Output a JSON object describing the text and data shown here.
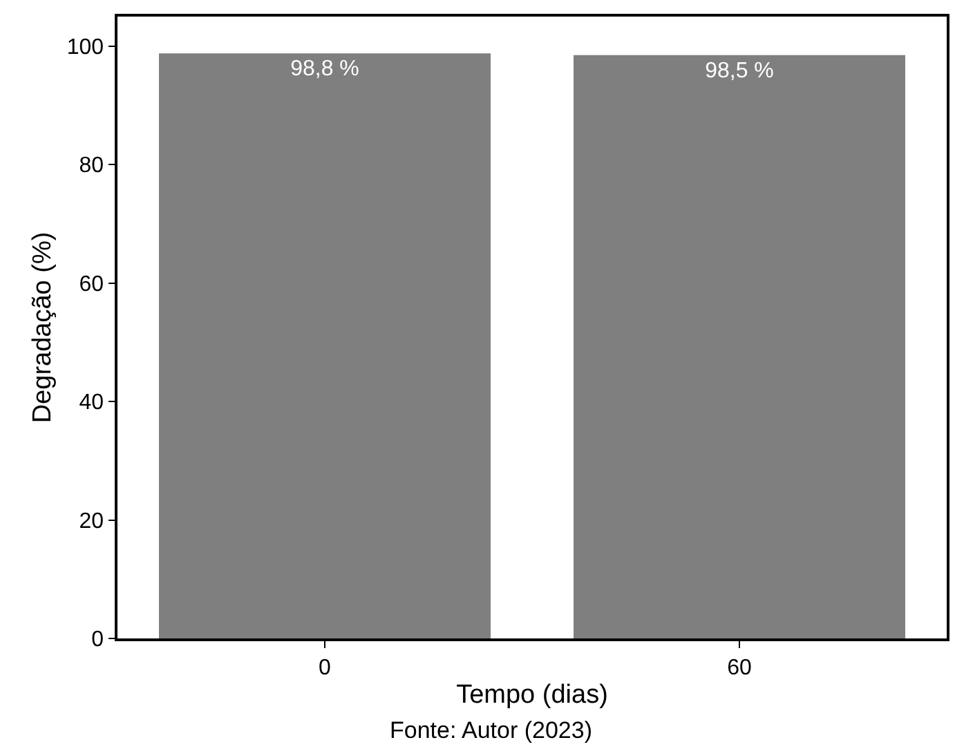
{
  "chart_data": {
    "type": "bar",
    "categories": [
      "0",
      "60"
    ],
    "values": [
      98.8,
      98.5
    ],
    "value_labels": [
      "98,8 %",
      "98,5 %"
    ],
    "color": "#7f7f7f",
    "xlabel": "Tempo (dias)",
    "ylabel": "Degradação (%)",
    "ylim": [
      0,
      105
    ],
    "yticks": [
      0,
      20,
      40,
      60,
      80,
      100
    ],
    "legend": false,
    "annotations": [
      "Fonte: Autor (2023)"
    ]
  }
}
